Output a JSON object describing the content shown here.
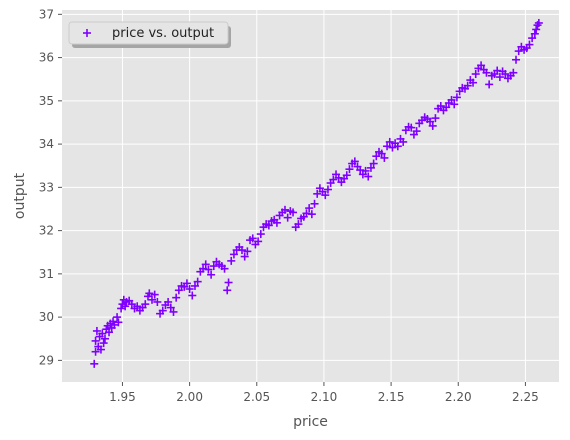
{
  "chart_data": {
    "type": "scatter",
    "xlabel": "price",
    "ylabel": "output",
    "xlim": [
      1.905,
      2.275
    ],
    "ylim": [
      28.5,
      37.1
    ],
    "xticks": [
      "1.95",
      "2.00",
      "2.05",
      "2.10",
      "2.15",
      "2.20",
      "2.25"
    ],
    "yticks": [
      "29",
      "30",
      "31",
      "32",
      "33",
      "34",
      "35",
      "36",
      "37"
    ],
    "grid": true,
    "legend_position": "top-left",
    "marker": "plus",
    "colors": {
      "series": "#7f00ff",
      "background": "#e5e5e5",
      "grid": "#ffffff"
    },
    "series": [
      {
        "name": "price vs. output",
        "points": [
          [
            1.929,
            28.92
          ],
          [
            1.93,
            29.2
          ],
          [
            1.93,
            29.45
          ],
          [
            1.931,
            29.68
          ],
          [
            1.932,
            29.32
          ],
          [
            1.933,
            29.55
          ],
          [
            1.934,
            29.25
          ],
          [
            1.935,
            29.62
          ],
          [
            1.936,
            29.4
          ],
          [
            1.937,
            29.5
          ],
          [
            1.938,
            29.72
          ],
          [
            1.939,
            29.8
          ],
          [
            1.94,
            29.65
          ],
          [
            1.941,
            29.85
          ],
          [
            1.942,
            29.75
          ],
          [
            1.943,
            29.9
          ],
          [
            1.944,
            29.82
          ],
          [
            1.946,
            30.0
          ],
          [
            1.947,
            29.88
          ],
          [
            1.949,
            30.2
          ],
          [
            1.95,
            30.3
          ],
          [
            1.951,
            30.4
          ],
          [
            1.952,
            30.25
          ],
          [
            1.953,
            30.35
          ],
          [
            1.955,
            30.38
          ],
          [
            1.957,
            30.3
          ],
          [
            1.959,
            30.2
          ],
          [
            1.961,
            30.25
          ],
          [
            1.963,
            30.15
          ],
          [
            1.965,
            30.22
          ],
          [
            1.967,
            30.3
          ],
          [
            1.969,
            30.48
          ],
          [
            1.97,
            30.55
          ],
          [
            1.972,
            30.4
          ],
          [
            1.974,
            30.52
          ],
          [
            1.976,
            30.35
          ],
          [
            1.978,
            30.08
          ],
          [
            1.98,
            30.15
          ],
          [
            1.982,
            30.28
          ],
          [
            1.984,
            30.35
          ],
          [
            1.986,
            30.22
          ],
          [
            1.988,
            30.12
          ],
          [
            1.99,
            30.45
          ],
          [
            1.992,
            30.62
          ],
          [
            1.994,
            30.72
          ],
          [
            1.996,
            30.7
          ],
          [
            1.998,
            30.78
          ],
          [
            2.0,
            30.65
          ],
          [
            2.002,
            30.5
          ],
          [
            2.004,
            30.72
          ],
          [
            2.006,
            30.82
          ],
          [
            2.008,
            31.05
          ],
          [
            2.01,
            31.12
          ],
          [
            2.012,
            31.22
          ],
          [
            2.014,
            31.1
          ],
          [
            2.016,
            30.98
          ],
          [
            2.018,
            31.18
          ],
          [
            2.02,
            31.28
          ],
          [
            2.022,
            31.22
          ],
          [
            2.024,
            31.18
          ],
          [
            2.026,
            31.12
          ],
          [
            2.028,
            30.62
          ],
          [
            2.029,
            30.8
          ],
          [
            2.031,
            31.3
          ],
          [
            2.033,
            31.45
          ],
          [
            2.035,
            31.55
          ],
          [
            2.037,
            31.62
          ],
          [
            2.039,
            31.55
          ],
          [
            2.041,
            31.4
          ],
          [
            2.043,
            31.52
          ],
          [
            2.045,
            31.78
          ],
          [
            2.047,
            31.82
          ],
          [
            2.049,
            31.68
          ],
          [
            2.051,
            31.75
          ],
          [
            2.053,
            31.92
          ],
          [
            2.055,
            32.08
          ],
          [
            2.057,
            32.15
          ],
          [
            2.059,
            32.12
          ],
          [
            2.061,
            32.22
          ],
          [
            2.063,
            32.25
          ],
          [
            2.065,
            32.18
          ],
          [
            2.067,
            32.35
          ],
          [
            2.069,
            32.42
          ],
          [
            2.071,
            32.48
          ],
          [
            2.073,
            32.3
          ],
          [
            2.075,
            32.45
          ],
          [
            2.077,
            32.42
          ],
          [
            2.079,
            32.08
          ],
          [
            2.081,
            32.15
          ],
          [
            2.083,
            32.28
          ],
          [
            2.085,
            32.32
          ],
          [
            2.087,
            32.4
          ],
          [
            2.089,
            32.52
          ],
          [
            2.091,
            32.38
          ],
          [
            2.093,
            32.62
          ],
          [
            2.095,
            32.85
          ],
          [
            2.097,
            32.98
          ],
          [
            2.099,
            32.9
          ],
          [
            2.101,
            32.82
          ],
          [
            2.103,
            32.95
          ],
          [
            2.105,
            33.1
          ],
          [
            2.107,
            33.18
          ],
          [
            2.109,
            33.3
          ],
          [
            2.111,
            33.22
          ],
          [
            2.113,
            33.12
          ],
          [
            2.115,
            33.2
          ],
          [
            2.117,
            33.28
          ],
          [
            2.119,
            33.42
          ],
          [
            2.121,
            33.55
          ],
          [
            2.123,
            33.6
          ],
          [
            2.125,
            33.48
          ],
          [
            2.127,
            33.4
          ],
          [
            2.129,
            33.3
          ],
          [
            2.131,
            33.38
          ],
          [
            2.133,
            33.25
          ],
          [
            2.135,
            33.45
          ],
          [
            2.137,
            33.55
          ],
          [
            2.139,
            33.72
          ],
          [
            2.141,
            33.82
          ],
          [
            2.143,
            33.78
          ],
          [
            2.145,
            33.68
          ],
          [
            2.147,
            33.95
          ],
          [
            2.149,
            34.05
          ],
          [
            2.151,
            33.92
          ],
          [
            2.153,
            34.02
          ],
          [
            2.155,
            33.95
          ],
          [
            2.157,
            34.12
          ],
          [
            2.159,
            34.05
          ],
          [
            2.161,
            34.32
          ],
          [
            2.163,
            34.4
          ],
          [
            2.165,
            34.38
          ],
          [
            2.167,
            34.22
          ],
          [
            2.169,
            34.3
          ],
          [
            2.171,
            34.48
          ],
          [
            2.173,
            34.55
          ],
          [
            2.175,
            34.62
          ],
          [
            2.177,
            34.58
          ],
          [
            2.179,
            34.52
          ],
          [
            2.181,
            34.42
          ],
          [
            2.183,
            34.6
          ],
          [
            2.185,
            34.82
          ],
          [
            2.187,
            34.88
          ],
          [
            2.189,
            34.78
          ],
          [
            2.191,
            34.85
          ],
          [
            2.193,
            34.95
          ],
          [
            2.195,
            35.02
          ],
          [
            2.197,
            34.92
          ],
          [
            2.199,
            35.08
          ],
          [
            2.201,
            35.22
          ],
          [
            2.203,
            35.3
          ],
          [
            2.205,
            35.28
          ],
          [
            2.207,
            35.35
          ],
          [
            2.209,
            35.48
          ],
          [
            2.211,
            35.42
          ],
          [
            2.213,
            35.62
          ],
          [
            2.215,
            35.75
          ],
          [
            2.217,
            35.82
          ],
          [
            2.219,
            35.72
          ],
          [
            2.221,
            35.65
          ],
          [
            2.223,
            35.38
          ],
          [
            2.225,
            35.58
          ],
          [
            2.227,
            35.62
          ],
          [
            2.229,
            35.7
          ],
          [
            2.231,
            35.55
          ],
          [
            2.233,
            35.68
          ],
          [
            2.235,
            35.62
          ],
          [
            2.237,
            35.52
          ],
          [
            2.239,
            35.58
          ],
          [
            2.241,
            35.65
          ],
          [
            2.243,
            35.95
          ],
          [
            2.245,
            36.15
          ],
          [
            2.247,
            36.25
          ],
          [
            2.249,
            36.18
          ],
          [
            2.251,
            36.22
          ],
          [
            2.253,
            36.3
          ],
          [
            2.255,
            36.45
          ],
          [
            2.257,
            36.55
          ],
          [
            2.258,
            36.65
          ],
          [
            2.259,
            36.75
          ],
          [
            2.26,
            36.8
          ]
        ]
      }
    ]
  }
}
